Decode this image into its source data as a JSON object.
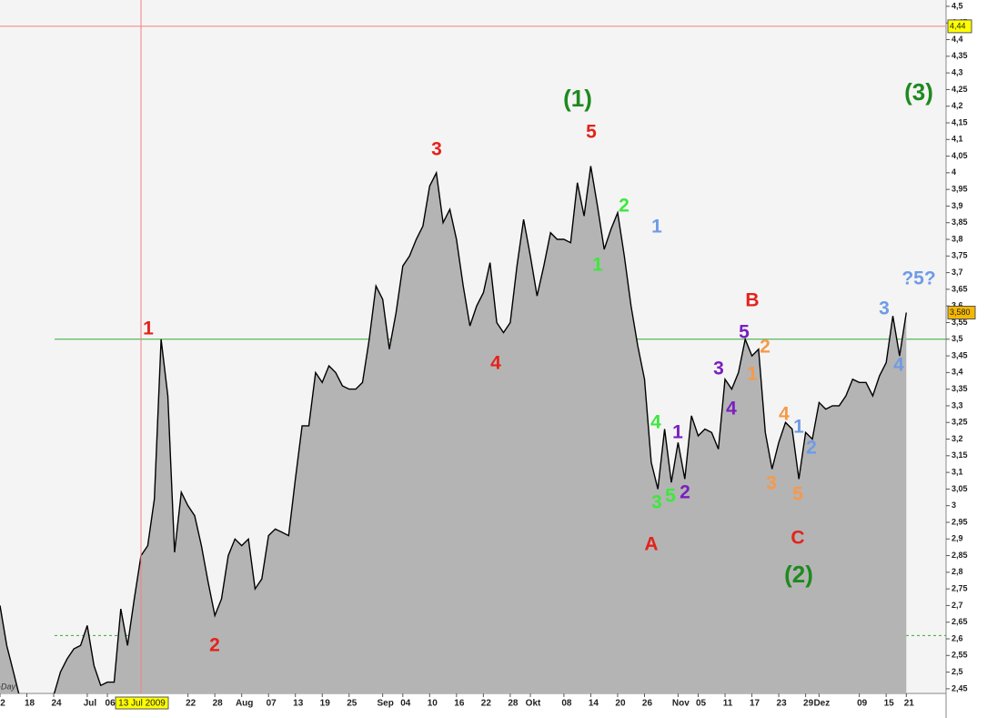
{
  "chart_data": {
    "type": "area",
    "timeframe": "-Day",
    "categories": [
      "2",
      null,
      null,
      null,
      "18",
      null,
      null,
      null,
      "24",
      null,
      null,
      null,
      null,
      "Jul",
      null,
      null,
      "06",
      null,
      null,
      null,
      null,
      null,
      null,
      null,
      null,
      null,
      null,
      null,
      "22",
      null,
      null,
      null,
      "28",
      null,
      null,
      null,
      "Aug",
      null,
      null,
      null,
      "07",
      null,
      null,
      null,
      "13",
      null,
      null,
      null,
      "19",
      null,
      null,
      null,
      "25",
      null,
      null,
      null,
      null,
      "Sep",
      null,
      null,
      "04",
      null,
      null,
      null,
      "10",
      null,
      null,
      null,
      "16",
      null,
      null,
      null,
      "22",
      null,
      null,
      null,
      "28",
      null,
      null,
      "Okt",
      null,
      null,
      null,
      null,
      "08",
      null,
      null,
      null,
      "14",
      null,
      null,
      null,
      "20",
      null,
      null,
      null,
      "26",
      null,
      null,
      null,
      null,
      "Nov",
      null,
      null,
      "05",
      null,
      null,
      null,
      "11",
      null,
      null,
      null,
      "17",
      null,
      null,
      null,
      "23",
      null,
      null,
      null,
      "29",
      null,
      "Dez",
      null,
      null,
      null,
      null,
      null,
      "09",
      null,
      null,
      null,
      "15",
      null,
      null,
      "21"
    ],
    "values": [
      2.7,
      2.58,
      2.5,
      2.42,
      2.4,
      2.38,
      2.38,
      2.4,
      2.43,
      2.5,
      2.54,
      2.57,
      2.58,
      2.64,
      2.52,
      2.46,
      2.47,
      2.47,
      2.69,
      2.58,
      2.72,
      2.85,
      2.88,
      3.02,
      3.5,
      3.33,
      2.86,
      3.04,
      3.0,
      2.97,
      2.88,
      2.77,
      2.67,
      2.72,
      2.85,
      2.9,
      2.88,
      2.9,
      2.75,
      2.78,
      2.91,
      2.93,
      2.92,
      2.91,
      3.08,
      3.24,
      3.24,
      3.4,
      3.37,
      3.42,
      3.4,
      3.36,
      3.35,
      3.35,
      3.37,
      3.5,
      3.66,
      3.62,
      3.47,
      3.58,
      3.72,
      3.75,
      3.8,
      3.84,
      3.96,
      4.0,
      3.85,
      3.89,
      3.8,
      3.66,
      3.54,
      3.6,
      3.64,
      3.73,
      3.55,
      3.52,
      3.55,
      3.72,
      3.86,
      3.75,
      3.63,
      3.72,
      3.82,
      3.8,
      3.8,
      3.79,
      3.97,
      3.87,
      4.02,
      3.9,
      3.77,
      3.83,
      3.88,
      3.75,
      3.6,
      3.48,
      3.38,
      3.13,
      3.05,
      3.23,
      3.07,
      3.19,
      3.08,
      3.27,
      3.21,
      3.23,
      3.22,
      3.17,
      3.38,
      3.35,
      3.4,
      3.5,
      3.45,
      3.47,
      3.22,
      3.11,
      3.19,
      3.25,
      3.23,
      3.08,
      3.22,
      3.2,
      3.31,
      3.29,
      3.3,
      3.3,
      3.33,
      3.38,
      3.37,
      3.37,
      3.33,
      3.39,
      3.43,
      3.57,
      3.45,
      3.58
    ],
    "color": "#b4b4b4",
    "line_color": "#000000",
    "ylim": [
      2.436,
      4.519
    ],
    "yticks": [
      {
        "value": 4.5,
        "label": "4,5"
      },
      {
        "value": 4.45,
        "label": "4,45"
      },
      {
        "value": 4.4,
        "label": "4,4"
      },
      {
        "value": 4.35,
        "label": "4,35"
      },
      {
        "value": 4.3,
        "label": "4,3"
      },
      {
        "value": 4.25,
        "label": "4,25"
      },
      {
        "value": 4.2,
        "label": "4,2"
      },
      {
        "value": 4.15,
        "label": "4,15"
      },
      {
        "value": 4.1,
        "label": "4,1"
      },
      {
        "value": 4.05,
        "label": "4,05"
      },
      4,
      {
        "value": 3.95,
        "label": "3,95"
      },
      {
        "value": 3.9,
        "label": "3,9"
      },
      {
        "value": 3.85,
        "label": "3,85"
      },
      {
        "value": 3.8,
        "label": "3,8"
      },
      {
        "value": 3.75,
        "label": "3,75"
      },
      {
        "value": 3.7,
        "label": "3,7"
      },
      {
        "value": 3.65,
        "label": "3,65"
      },
      {
        "value": 3.6,
        "label": "3,6"
      },
      {
        "value": 3.55,
        "label": "3,55"
      },
      {
        "value": 3.5,
        "label": "3,5"
      },
      {
        "value": 3.45,
        "label": "3,45"
      },
      {
        "value": 3.4,
        "label": "3,4"
      },
      {
        "value": 3.35,
        "label": "3,35"
      },
      {
        "value": 3.3,
        "label": "3,3"
      },
      {
        "value": 3.25,
        "label": "3,25"
      },
      {
        "value": 3.2,
        "label": "3,2"
      },
      {
        "value": 3.15,
        "label": "3,15"
      },
      {
        "value": 3.1,
        "label": "3,1"
      },
      {
        "value": 3.05,
        "label": "3,05"
      },
      3,
      {
        "value": 2.95,
        "label": "2,95"
      },
      {
        "value": 2.9,
        "label": "2,9"
      },
      {
        "value": 2.85,
        "label": "2,85"
      },
      {
        "value": 2.8,
        "label": "2,8"
      },
      {
        "value": 2.75,
        "label": "2,75"
      },
      {
        "value": 2.7,
        "label": "2,7"
      },
      {
        "value": 2.65,
        "label": "2,65"
      },
      {
        "value": 2.6,
        "label": "2,6"
      },
      {
        "value": 2.55,
        "label": "2,55"
      },
      {
        "value": 2.5,
        "label": "2,5"
      },
      {
        "value": 2.45,
        "label": "2,45"
      }
    ],
    "crosshair": {
      "x_label": "13 Jul 2009",
      "level": {
        "value": 4.44,
        "label": "4,44"
      },
      "color": "#f08080"
    },
    "last_price": {
      "value": 3.58,
      "label": "3,580"
    },
    "lines": [
      {
        "value": 3.5,
        "color": "#33aa33",
        "style": "solid"
      },
      {
        "value": 2.61,
        "color": "#33aa33",
        "style": "dashed"
      }
    ],
    "annotations": [
      {
        "text": "1",
        "color": "#e3231b"
      },
      {
        "text": "2",
        "color": "#e3231b"
      },
      {
        "text": "3",
        "color": "#e3231b"
      },
      {
        "text": "4",
        "color": "#e3231b"
      },
      {
        "text": "5",
        "color": "#e3231b"
      },
      {
        "text": "(1)",
        "color": "#1e8a1e"
      },
      {
        "text": "1",
        "color": "#6f9be6"
      },
      {
        "text": "2",
        "color": "#3de83d"
      },
      {
        "text": "1",
        "color": "#3de83d"
      },
      {
        "text": "A",
        "color": "#e3231b"
      },
      {
        "text": "4",
        "color": "#3de83d"
      },
      {
        "text": "3",
        "color": "#3de83d"
      },
      {
        "text": "5",
        "color": "#3de83d"
      },
      {
        "text": "1",
        "color": "#7a1fc0"
      },
      {
        "text": "2",
        "color": "#7a1fc0"
      },
      {
        "text": "3",
        "color": "#7a1fc0"
      },
      {
        "text": "4",
        "color": "#7a1fc0"
      },
      {
        "text": "5",
        "color": "#7a1fc0"
      },
      {
        "text": "B",
        "color": "#e3231b"
      },
      {
        "text": "2",
        "color": "#f59a4a"
      },
      {
        "text": "1",
        "color": "#f59a4a"
      },
      {
        "text": "4",
        "color": "#f59a4a"
      },
      {
        "text": "3",
        "color": "#f59a4a"
      },
      {
        "text": "5",
        "color": "#f59a4a"
      },
      {
        "text": "1",
        "color": "#6f9be6"
      },
      {
        "text": "2",
        "color": "#6f9be6"
      },
      {
        "text": "C",
        "color": "#e3231b"
      },
      {
        "text": "(2)",
        "color": "#1e8a1e"
      },
      {
        "text": "3",
        "color": "#6f9be6"
      },
      {
        "text": "4",
        "color": "#6f9be6"
      },
      {
        "text": "?5?",
        "color": "#6f9be6"
      },
      {
        "text": "(3)",
        "color": "#1e8a1e"
      }
    ]
  }
}
